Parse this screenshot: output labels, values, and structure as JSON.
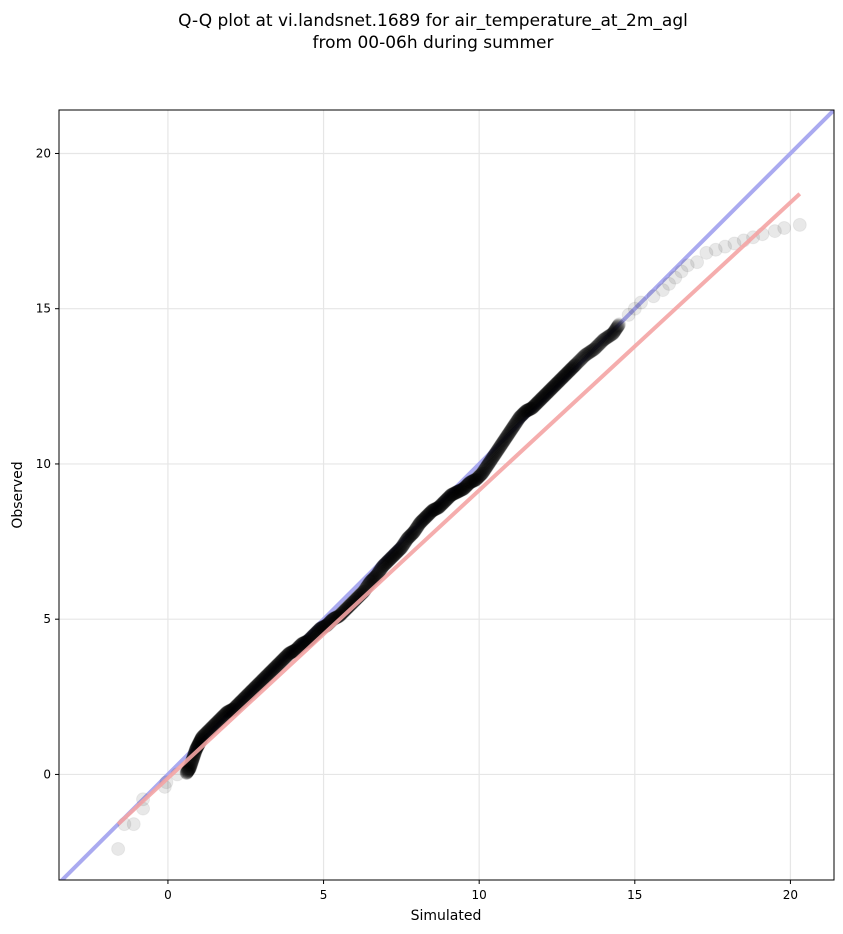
{
  "chart_data": {
    "type": "scatter",
    "title": [
      "Q-Q plot at vi.landsnet.1689 for air_temperature_at_2m_agl",
      "from 00-06h during summer"
    ],
    "xlabel": "Simulated",
    "ylabel": "Observed",
    "xlim": [
      -3.5,
      21.4
    ],
    "ylim": [
      -3.4,
      21.4
    ],
    "xticks": [
      0,
      5,
      10,
      15,
      20
    ],
    "yticks": [
      0,
      5,
      10,
      15,
      20
    ],
    "grid": true,
    "colors": {
      "points": "#000000",
      "identity_line": "#aaaaf0",
      "fit_line": "#f4a4a4",
      "grid": "#e6e6e6"
    },
    "identity_line": {
      "from": [
        -3.5,
        -3.5
      ],
      "to": [
        21.4,
        21.4
      ]
    },
    "fit_line": {
      "from": [
        -1.6,
        -1.6
      ],
      "to": [
        20.3,
        18.7
      ]
    },
    "quantiles": {
      "x": [
        -1.6,
        -1.4,
        -1.1,
        -0.8,
        -0.8,
        -0.1,
        -0.05,
        0.3,
        0.6,
        0.7,
        0.8,
        0.9,
        1.0,
        1.1,
        1.3,
        1.5,
        1.7,
        1.9,
        2.1,
        2.3,
        2.5,
        2.7,
        2.9,
        3.1,
        3.3,
        3.5,
        3.7,
        3.9,
        4.1,
        4.3,
        4.5,
        4.7,
        4.9,
        5.1,
        5.3,
        5.5,
        5.7,
        5.9,
        6.1,
        6.3,
        6.5,
        6.7,
        6.9,
        7.1,
        7.3,
        7.5,
        7.7,
        7.9,
        8.1,
        8.3,
        8.5,
        8.7,
        8.9,
        9.1,
        9.3,
        9.5,
        9.7,
        9.9,
        10.1,
        10.3,
        10.5,
        10.7,
        10.9,
        11.1,
        11.3,
        11.5,
        11.7,
        11.9,
        12.1,
        12.3,
        12.5,
        12.7,
        12.9,
        13.1,
        13.4,
        13.7,
        14.0,
        14.3,
        14.5,
        14.8,
        15.0,
        15.2,
        15.6,
        15.9,
        16.1,
        16.3,
        16.5,
        16.7,
        17.0,
        17.3,
        17.6,
        17.9,
        18.2,
        18.5,
        18.8,
        19.1,
        19.5,
        19.8,
        20.3
      ],
      "y": [
        -2.4,
        -1.6,
        -1.6,
        -1.1,
        -0.8,
        -0.4,
        -0.25,
        0.0,
        0.05,
        0.2,
        0.5,
        0.8,
        1.0,
        1.2,
        1.4,
        1.6,
        1.8,
        2.0,
        2.1,
        2.3,
        2.5,
        2.7,
        2.9,
        3.1,
        3.3,
        3.5,
        3.7,
        3.9,
        4.0,
        4.2,
        4.3,
        4.5,
        4.7,
        4.8,
        5.0,
        5.1,
        5.3,
        5.5,
        5.7,
        5.9,
        6.2,
        6.4,
        6.7,
        6.9,
        7.1,
        7.3,
        7.6,
        7.8,
        8.1,
        8.3,
        8.5,
        8.6,
        8.8,
        9.0,
        9.1,
        9.2,
        9.4,
        9.5,
        9.7,
        10.0,
        10.3,
        10.6,
        10.9,
        11.2,
        11.5,
        11.7,
        11.8,
        12.0,
        12.2,
        12.4,
        12.6,
        12.8,
        13.0,
        13.2,
        13.5,
        13.7,
        14.0,
        14.2,
        14.5,
        14.8,
        15.0,
        15.2,
        15.4,
        15.6,
        15.8,
        16.0,
        16.2,
        16.4,
        16.5,
        16.8,
        16.9,
        17.0,
        17.1,
        17.2,
        17.3,
        17.4,
        17.5,
        17.6,
        17.7
      ]
    }
  }
}
